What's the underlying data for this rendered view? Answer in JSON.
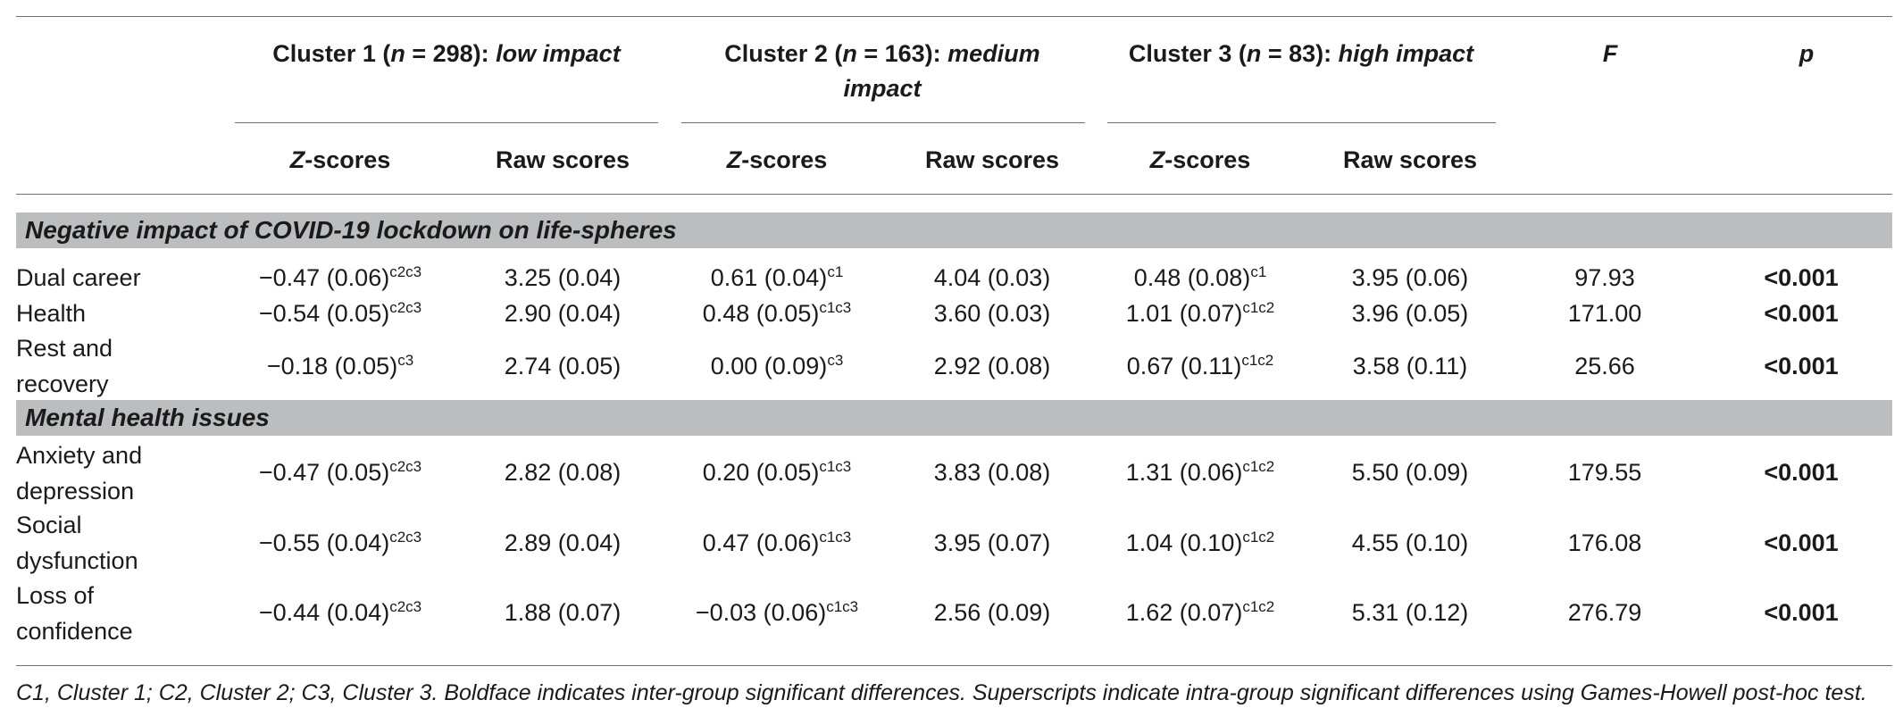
{
  "table": {
    "cluster_headers": [
      {
        "prefix": "Cluster 1 (",
        "n_label": "n",
        "n_value": " = 298): ",
        "impact": "low impact"
      },
      {
        "prefix": "Cluster 2 (",
        "n_label": "n",
        "n_value": " = 163): ",
        "impact": "medium",
        "impact_line2": "impact"
      },
      {
        "prefix": "Cluster 3 (",
        "n_label": "n",
        "n_value": " = 83): ",
        "impact": "high impact"
      }
    ],
    "stat_headers": {
      "f": "F",
      "p": "p"
    },
    "sub_headers": {
      "z_letter": "Z",
      "z_rest": "-scores",
      "raw": "Raw scores"
    },
    "sections": [
      {
        "title": "Negative impact of COVID-19 lockdown on life-spheres",
        "rows": [
          {
            "label": [
              "Dual career"
            ],
            "c1z": "−0.47 (0.06)",
            "c1z_sup": "c2c3",
            "c1raw": "3.25 (0.04)",
            "c2z": "0.61 (0.04)",
            "c2z_sup": "c1",
            "c2raw": "4.04 (0.03)",
            "c3z": "0.48 (0.08)",
            "c3z_sup": "c1",
            "c3raw": "3.95 (0.06)",
            "f": "97.93",
            "p": "<0.001"
          },
          {
            "label": [
              "Health"
            ],
            "c1z": "−0.54 (0.05)",
            "c1z_sup": "c2c3",
            "c1raw": "2.90 (0.04)",
            "c2z": "0.48 (0.05)",
            "c2z_sup": "c1c3",
            "c2raw": "3.60 (0.03)",
            "c3z": "1.01 (0.07)",
            "c3z_sup": "c1c2",
            "c3raw": "3.96 (0.05)",
            "f": "171.00",
            "p": "<0.001"
          },
          {
            "label": [
              "Rest and",
              "recovery"
            ],
            "c1z": "−0.18 (0.05)",
            "c1z_sup": "c3",
            "c1raw": "2.74 (0.05)",
            "c2z": "0.00 (0.09)",
            "c2z_sup": "c3",
            "c2raw": "2.92 (0.08)",
            "c3z": "0.67 (0.11)",
            "c3z_sup": "c1c2",
            "c3raw": "3.58 (0.11)",
            "f": "25.66",
            "p": "<0.001"
          }
        ]
      },
      {
        "title": "Mental health issues",
        "rows": [
          {
            "label": [
              "Anxiety and",
              "depression"
            ],
            "c1z": "−0.47 (0.05)",
            "c1z_sup": "c2c3",
            "c1raw": "2.82 (0.08)",
            "c2z": "0.20 (0.05)",
            "c2z_sup": "c1c3",
            "c2raw": "3.83 (0.08)",
            "c3z": "1.31 (0.06)",
            "c3z_sup": "c1c2",
            "c3raw": "5.50 (0.09)",
            "f": "179.55",
            "p": "<0.001"
          },
          {
            "label": [
              "Social",
              "dysfunction"
            ],
            "c1z": "−0.55 (0.04)",
            "c1z_sup": "c2c3",
            "c1raw": "2.89 (0.04)",
            "c2z": "0.47 (0.06)",
            "c2z_sup": "c1c3",
            "c2raw": "3.95 (0.07)",
            "c3z": "1.04 (0.10)",
            "c3z_sup": "c1c2",
            "c3raw": "4.55 (0.10)",
            "f": "176.08",
            "p": "<0.001"
          },
          {
            "label": [
              "Loss of",
              "confidence"
            ],
            "c1z": "−0.44 (0.04)",
            "c1z_sup": "c2c3",
            "c1raw": "1.88 (0.07)",
            "c2z": "−0.03 (0.06)",
            "c2z_sup": "c1c3",
            "c2raw": "2.56 (0.09)",
            "c3z": "1.62 (0.07)",
            "c3z_sup": "c1c2",
            "c3raw": "5.31 (0.12)",
            "f": "276.79",
            "p": "<0.001"
          }
        ]
      }
    ],
    "footnote": "C1, Cluster 1; C2, Cluster 2; C3, Cluster 3. Boldface indicates inter-group significant differences. Superscripts indicate intra-group significant differences using Games-Howell post-hoc test."
  }
}
